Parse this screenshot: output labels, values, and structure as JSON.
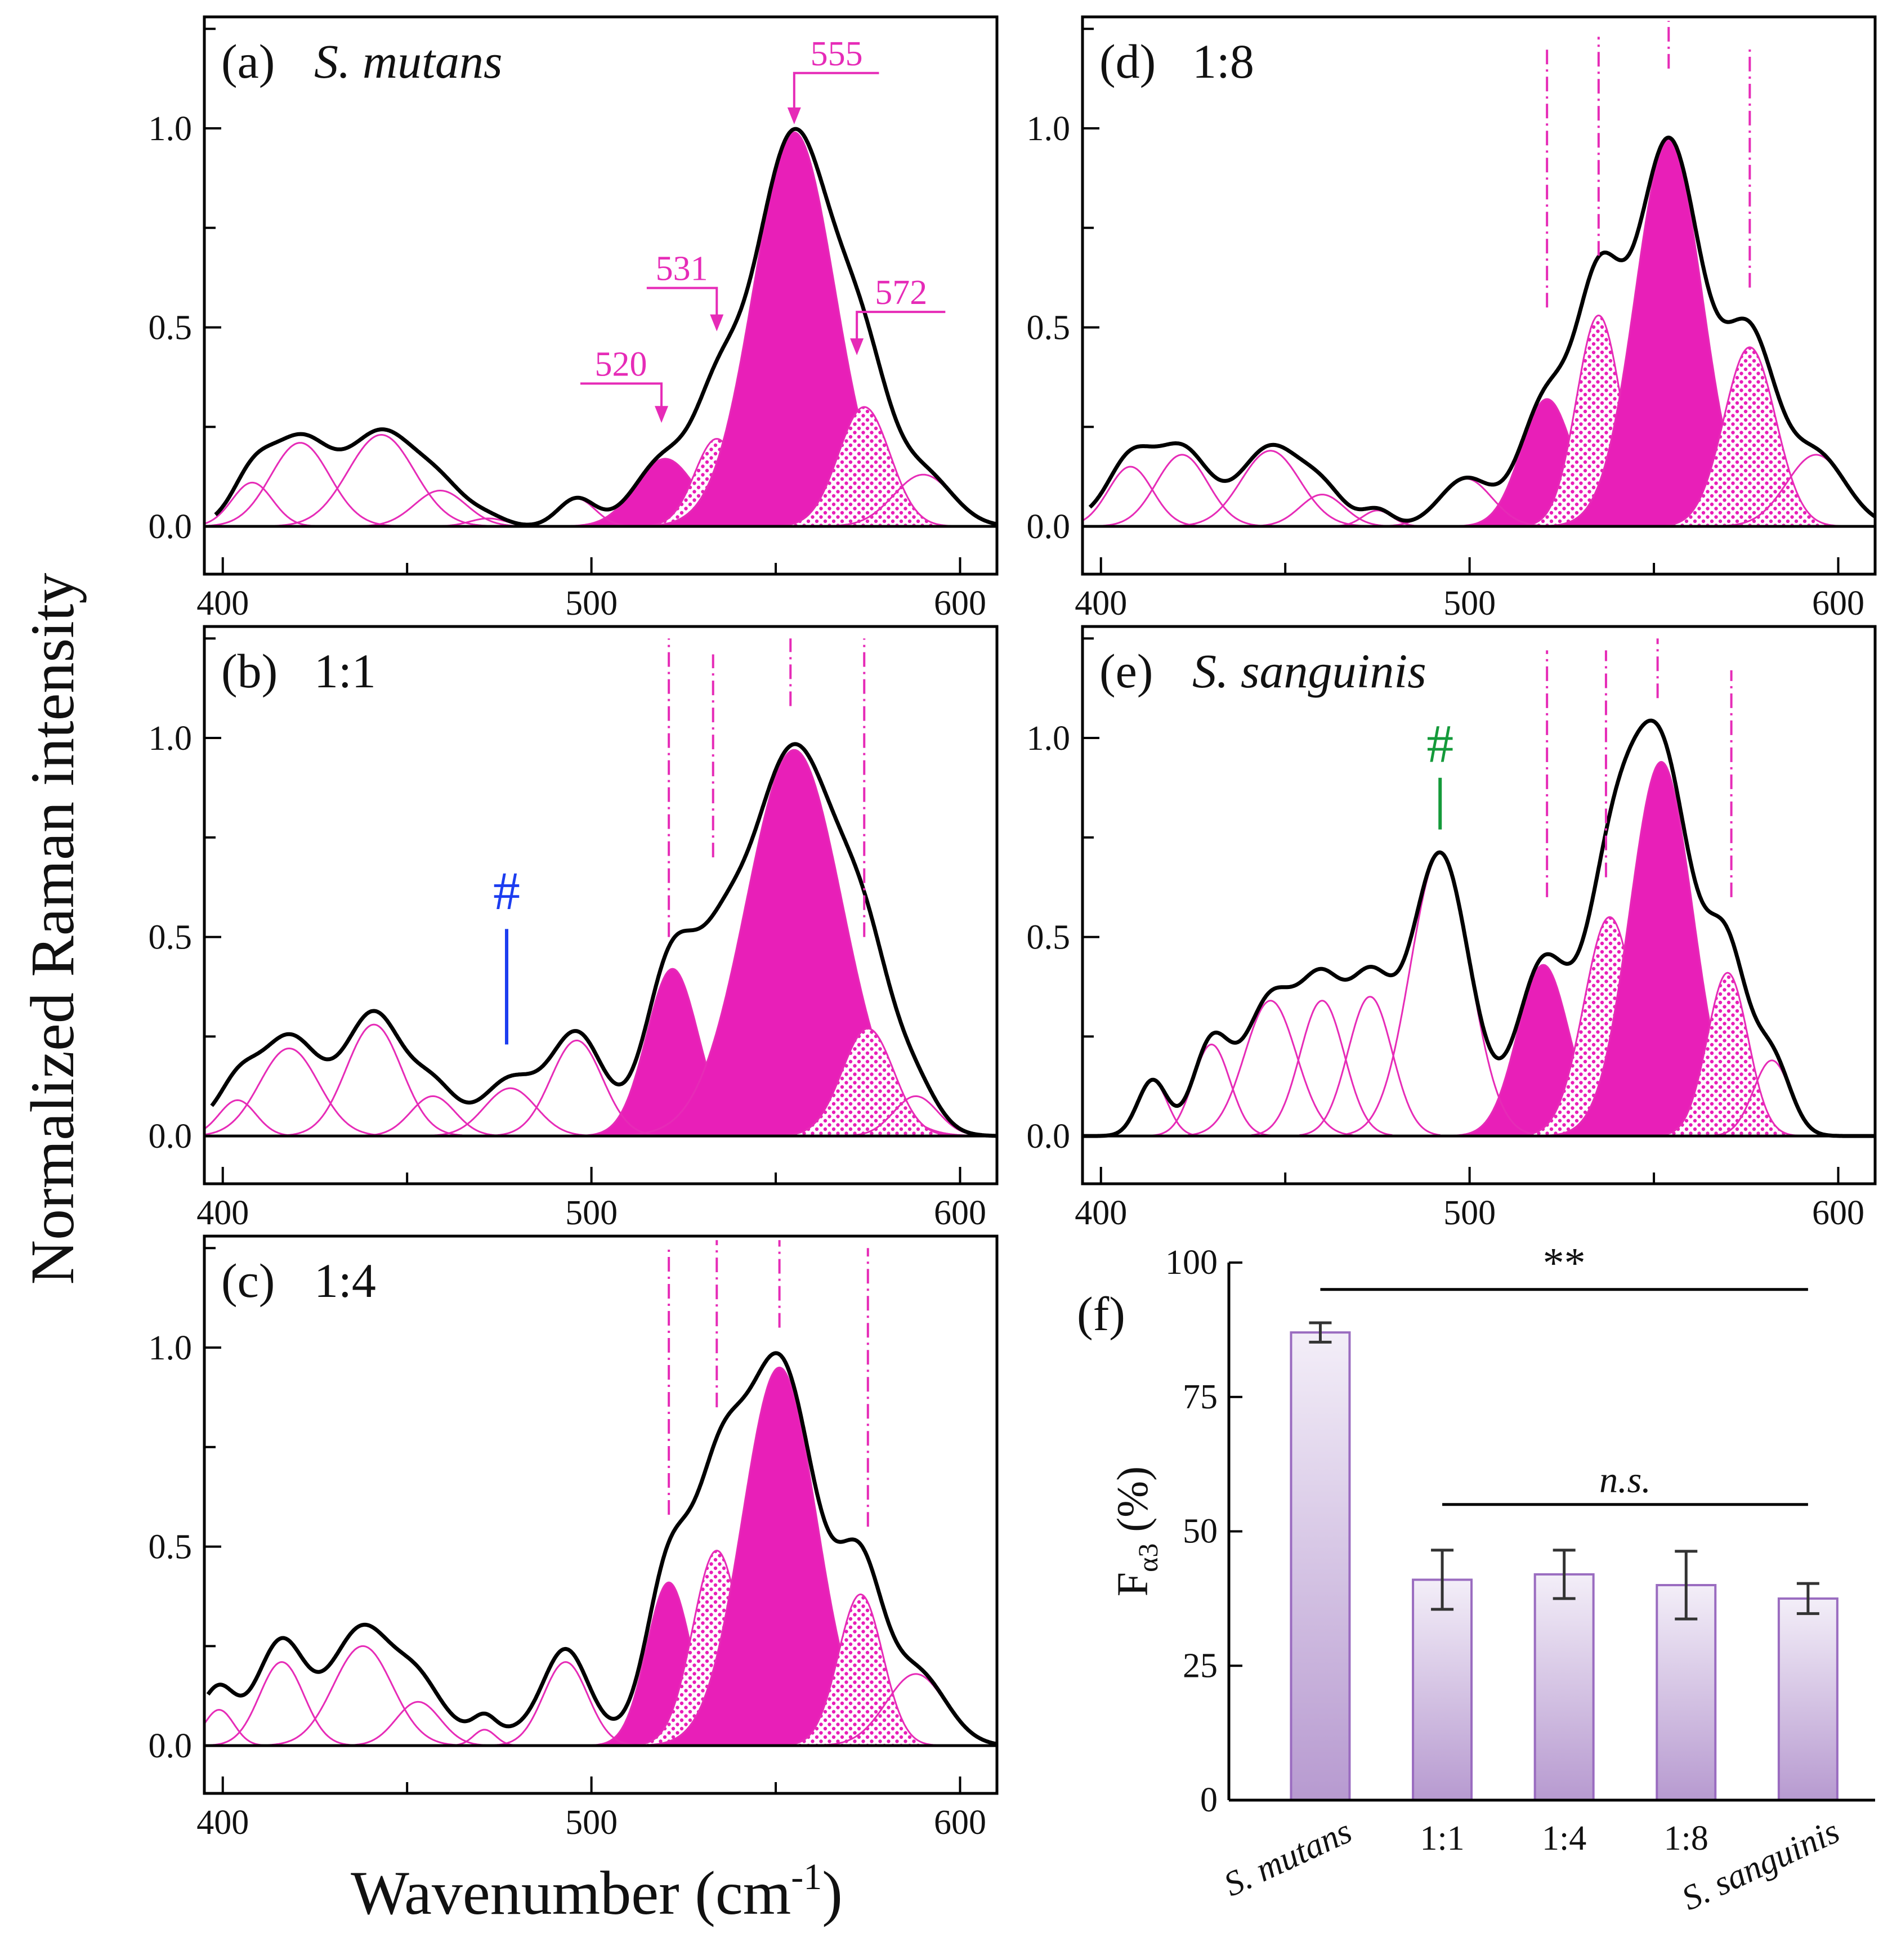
{
  "colors": {
    "magenta": "#e62bb7",
    "fill": "#e81fb8",
    "black": "#000000",
    "blue": "#1c3df0",
    "green": "#149a3a",
    "bar_top": "#f3eef8",
    "bar_bottom": "#b79ad0",
    "bar_stroke": "#9a6cc0"
  },
  "figure": {
    "ylabel": "Normalized Raman intensity",
    "xlabel": "Wavenumber (cm",
    "xlabel_sup": "-1",
    "xlabel_close": ")"
  },
  "chart_data": [
    {
      "panel": "a",
      "type": "line",
      "tag": "(a)",
      "title": "S. mutans",
      "title_italic": true,
      "xlim": [
        395,
        610
      ],
      "ylim": [
        -0.12,
        1.28
      ],
      "xticks": [
        400,
        500,
        600
      ],
      "yticks": [
        0.0,
        0.5,
        1.0
      ],
      "xtick_labels": [
        "400",
        "500",
        "600"
      ],
      "ytick_labels": [
        "0.0",
        "0.5",
        "1.0"
      ],
      "baseline": [
        [
          398,
          0.005
        ],
        [
          482,
          0.0
        ],
        [
          610,
          0.0
        ]
      ],
      "components": [
        {
          "c": 408,
          "a": 0.11,
          "w": 5.5,
          "style": "line"
        },
        {
          "c": 421,
          "a": 0.21,
          "w": 8,
          "style": "line"
        },
        {
          "c": 443,
          "a": 0.23,
          "w": 9,
          "style": "line"
        },
        {
          "c": 459,
          "a": 0.09,
          "w": 7,
          "style": "line"
        },
        {
          "c": 472,
          "a": 0.02,
          "w": 5,
          "style": "line"
        },
        {
          "c": 496,
          "a": 0.07,
          "w": 5,
          "style": "line"
        },
        {
          "c": 520,
          "a": 0.17,
          "w": 8,
          "style": "solid"
        },
        {
          "c": 534,
          "a": 0.22,
          "w": 6,
          "style": "dots"
        },
        {
          "c": 555,
          "a": 0.99,
          "w": 11,
          "style": "solid"
        },
        {
          "c": 574,
          "a": 0.3,
          "w": 7,
          "style": "dots"
        },
        {
          "c": 590,
          "a": 0.13,
          "w": 8,
          "style": "line"
        }
      ],
      "annotations": [
        {
          "text": "555",
          "kind": "arrow",
          "x": 555,
          "y_tip": 1.01,
          "y_text": 1.17,
          "x_shelf_end": 578
        },
        {
          "text": "531",
          "kind": "arrow",
          "x": 534,
          "y_tip": 0.49,
          "y_text": 0.63,
          "x_shelf_end": 515
        },
        {
          "text": "572",
          "kind": "arrow",
          "x": 572,
          "y_tip": 0.43,
          "y_text": 0.57,
          "x_shelf_end": 596
        },
        {
          "text": "520",
          "kind": "arrow",
          "x": 519,
          "y_tip": 0.26,
          "y_text": 0.39,
          "x_shelf_end": 497
        }
      ],
      "markers": []
    },
    {
      "panel": "b",
      "type": "line",
      "tag": "(b)",
      "title": "1:1",
      "title_italic": false,
      "xlim": [
        395,
        610
      ],
      "ylim": [
        -0.12,
        1.28
      ],
      "xticks": [
        400,
        500,
        600
      ],
      "yticks": [
        0.0,
        0.5,
        1.0
      ],
      "xtick_labels": [
        "400",
        "500",
        "600"
      ],
      "ytick_labels": [
        "0.0",
        "0.5",
        "1.0"
      ],
      "baseline": [
        [
          397,
          0.035
        ],
        [
          610,
          0.0
        ]
      ],
      "components": [
        {
          "c": 404,
          "a": 0.09,
          "w": 5,
          "style": "line"
        },
        {
          "c": 418,
          "a": 0.22,
          "w": 8,
          "style": "line"
        },
        {
          "c": 441,
          "a": 0.28,
          "w": 7.5,
          "style": "line"
        },
        {
          "c": 457,
          "a": 0.1,
          "w": 6,
          "style": "line"
        },
        {
          "c": 478,
          "a": 0.12,
          "w": 7,
          "style": "line"
        },
        {
          "c": 496,
          "a": 0.24,
          "w": 7,
          "style": "line"
        },
        {
          "c": 522,
          "a": 0.42,
          "w": 7,
          "style": "solid"
        },
        {
          "c": 535,
          "a": 0.2,
          "w": 6,
          "style": "dots"
        },
        {
          "c": 555,
          "a": 0.97,
          "w": 13,
          "style": "solid"
        },
        {
          "c": 575,
          "a": 0.27,
          "w": 7,
          "style": "dots"
        },
        {
          "c": 588,
          "a": 0.1,
          "w": 6,
          "style": "line"
        }
      ],
      "annotations": [],
      "markers": [
        {
          "x": 521,
          "y0": 0.5,
          "y1": 1.25
        },
        {
          "x": 533,
          "y0": 0.7,
          "y1": 1.21
        },
        {
          "x": 554,
          "y0": 1.08,
          "y1": 1.25
        },
        {
          "x": 574,
          "y0": 0.5,
          "y1": 1.25
        }
      ],
      "hash": {
        "text": "#",
        "x": 477,
        "y_text": 0.57,
        "y_line0": 0.23,
        "y_line1": 0.52,
        "color": "blue"
      }
    },
    {
      "panel": "c",
      "type": "line",
      "tag": "(c)",
      "title": "1:4",
      "title_italic": false,
      "xlim": [
        395,
        610
      ],
      "ylim": [
        -0.12,
        1.28
      ],
      "xticks": [
        400,
        500,
        600
      ],
      "yticks": [
        0.0,
        0.5,
        1.0
      ],
      "xtick_labels": [
        "400",
        "500",
        "600"
      ],
      "ytick_labels": [
        "0.0",
        "0.5",
        "1.0"
      ],
      "baseline": [
        [
          396,
          0.06
        ],
        [
          610,
          0.0
        ]
      ],
      "components": [
        {
          "c": 399,
          "a": 0.09,
          "w": 4,
          "style": "line"
        },
        {
          "c": 416,
          "a": 0.21,
          "w": 6,
          "style": "line"
        },
        {
          "c": 438,
          "a": 0.25,
          "w": 8,
          "style": "line"
        },
        {
          "c": 453,
          "a": 0.11,
          "w": 6,
          "style": "line"
        },
        {
          "c": 471,
          "a": 0.04,
          "w": 3,
          "style": "line"
        },
        {
          "c": 493,
          "a": 0.21,
          "w": 6,
          "style": "line"
        },
        {
          "c": 521,
          "a": 0.41,
          "w": 6,
          "style": "solid"
        },
        {
          "c": 534,
          "a": 0.49,
          "w": 6.5,
          "style": "dots"
        },
        {
          "c": 551,
          "a": 0.95,
          "w": 10,
          "style": "solid"
        },
        {
          "c": 573,
          "a": 0.38,
          "w": 6,
          "style": "dots"
        },
        {
          "c": 588,
          "a": 0.18,
          "w": 8,
          "style": "line"
        }
      ],
      "annotations": [],
      "markers": [
        {
          "x": 521,
          "y0": 0.58,
          "y1": 1.25
        },
        {
          "x": 534,
          "y0": 0.85,
          "y1": 1.27
        },
        {
          "x": 551,
          "y0": 1.05,
          "y1": 1.27
        },
        {
          "x": 575,
          "y0": 0.55,
          "y1": 1.25
        }
      ]
    },
    {
      "panel": "d",
      "type": "line",
      "tag": "(d)",
      "title": "1:8",
      "title_italic": false,
      "xlim": [
        395,
        610
      ],
      "ylim": [
        -0.12,
        1.28
      ],
      "xticks": [
        400,
        500,
        600
      ],
      "yticks": [
        0.0,
        0.5,
        1.0
      ],
      "xtick_labels": [
        "400",
        "500",
        "600"
      ],
      "ytick_labels": [
        "0.0",
        "0.5",
        "1.0"
      ],
      "baseline": [
        [
          397,
          0.02
        ],
        [
          482,
          0.0
        ],
        [
          610,
          0.0
        ]
      ],
      "components": [
        {
          "c": 408,
          "a": 0.15,
          "w": 6,
          "style": "line"
        },
        {
          "c": 422,
          "a": 0.18,
          "w": 7,
          "style": "line"
        },
        {
          "c": 446,
          "a": 0.19,
          "w": 8,
          "style": "line"
        },
        {
          "c": 460,
          "a": 0.08,
          "w": 6,
          "style": "line"
        },
        {
          "c": 475,
          "a": 0.04,
          "w": 4,
          "style": "line"
        },
        {
          "c": 499,
          "a": 0.12,
          "w": 7,
          "style": "line"
        },
        {
          "c": 521,
          "a": 0.32,
          "w": 7,
          "style": "solid"
        },
        {
          "c": 535,
          "a": 0.53,
          "w": 6,
          "style": "dots"
        },
        {
          "c": 554,
          "a": 0.97,
          "w": 9,
          "style": "solid"
        },
        {
          "c": 576,
          "a": 0.45,
          "w": 7,
          "style": "dots"
        },
        {
          "c": 594,
          "a": 0.18,
          "w": 8,
          "style": "line"
        }
      ],
      "annotations": [],
      "markers": [
        {
          "x": 521,
          "y0": 0.55,
          "y1": 1.2
        },
        {
          "x": 535,
          "y0": 0.68,
          "y1": 1.23
        },
        {
          "x": 554,
          "y0": 1.15,
          "y1": 1.27
        },
        {
          "x": 576,
          "y0": 0.6,
          "y1": 1.2
        }
      ]
    },
    {
      "panel": "e",
      "type": "line",
      "tag": "(e)",
      "title": "S. sanguinis",
      "title_italic": true,
      "xlim": [
        395,
        610
      ],
      "ylim": [
        -0.12,
        1.28
      ],
      "xticks": [
        400,
        500,
        600
      ],
      "yticks": [
        0.0,
        0.5,
        1.0
      ],
      "xtick_labels": [
        "400",
        "500",
        "600"
      ],
      "ytick_labels": [
        "0.0",
        "0.5",
        "1.0"
      ],
      "baseline": [
        [
          395,
          0.0
        ],
        [
          610,
          0.0
        ]
      ],
      "components": [
        {
          "c": 414,
          "a": 0.14,
          "w": 4,
          "style": "line"
        },
        {
          "c": 430,
          "a": 0.23,
          "w": 5,
          "style": "line"
        },
        {
          "c": 446,
          "a": 0.34,
          "w": 7,
          "style": "line"
        },
        {
          "c": 460,
          "a": 0.34,
          "w": 6,
          "style": "line"
        },
        {
          "c": 473,
          "a": 0.35,
          "w": 6,
          "style": "line"
        },
        {
          "c": 492,
          "a": 0.71,
          "w": 8,
          "style": "line"
        },
        {
          "c": 520,
          "a": 0.43,
          "w": 7,
          "style": "solid"
        },
        {
          "c": 538,
          "a": 0.55,
          "w": 7,
          "style": "dots"
        },
        {
          "c": 552,
          "a": 0.94,
          "w": 8.5,
          "style": "solid"
        },
        {
          "c": 570,
          "a": 0.41,
          "w": 5.5,
          "style": "dots"
        },
        {
          "c": 582,
          "a": 0.19,
          "w": 5,
          "style": "line"
        }
      ],
      "annotations": [],
      "markers": [
        {
          "x": 521,
          "y0": 0.6,
          "y1": 1.22
        },
        {
          "x": 537,
          "y0": 0.65,
          "y1": 1.22
        },
        {
          "x": 551,
          "y0": 1.1,
          "y1": 1.25
        },
        {
          "x": 571,
          "y0": 0.6,
          "y1": 1.17
        }
      ],
      "hash": {
        "text": "#",
        "x": 492,
        "y_text": 0.94,
        "y_line0": 0.77,
        "y_line1": 0.9,
        "color": "green"
      }
    },
    {
      "panel": "f",
      "type": "bar",
      "tag": "(f)",
      "ylabel_main": "F",
      "ylabel_sub": "α3",
      "ylabel_unit": "(%)",
      "categories": [
        "S. mutans",
        "1:1",
        "1:4",
        "1:8",
        "S. sanguinis"
      ],
      "category_italic": [
        true,
        false,
        false,
        false,
        true
      ],
      "category_rotated": [
        true,
        false,
        false,
        false,
        true
      ],
      "values": [
        87,
        41,
        42,
        40,
        37.5
      ],
      "errors": [
        1.8,
        5.5,
        4.5,
        6.3,
        2.8
      ],
      "ylim": [
        0,
        100
      ],
      "yticks": [
        0,
        25,
        50,
        75,
        100
      ],
      "ytick_labels": [
        "0",
        "25",
        "50",
        "75",
        "100"
      ],
      "significance": [
        {
          "label": "**",
          "from": 0,
          "to": 4,
          "y": 95,
          "italic": false
        },
        {
          "label": "n.s.",
          "from": 1,
          "to": 4,
          "y": 55,
          "italic": true
        }
      ]
    }
  ]
}
